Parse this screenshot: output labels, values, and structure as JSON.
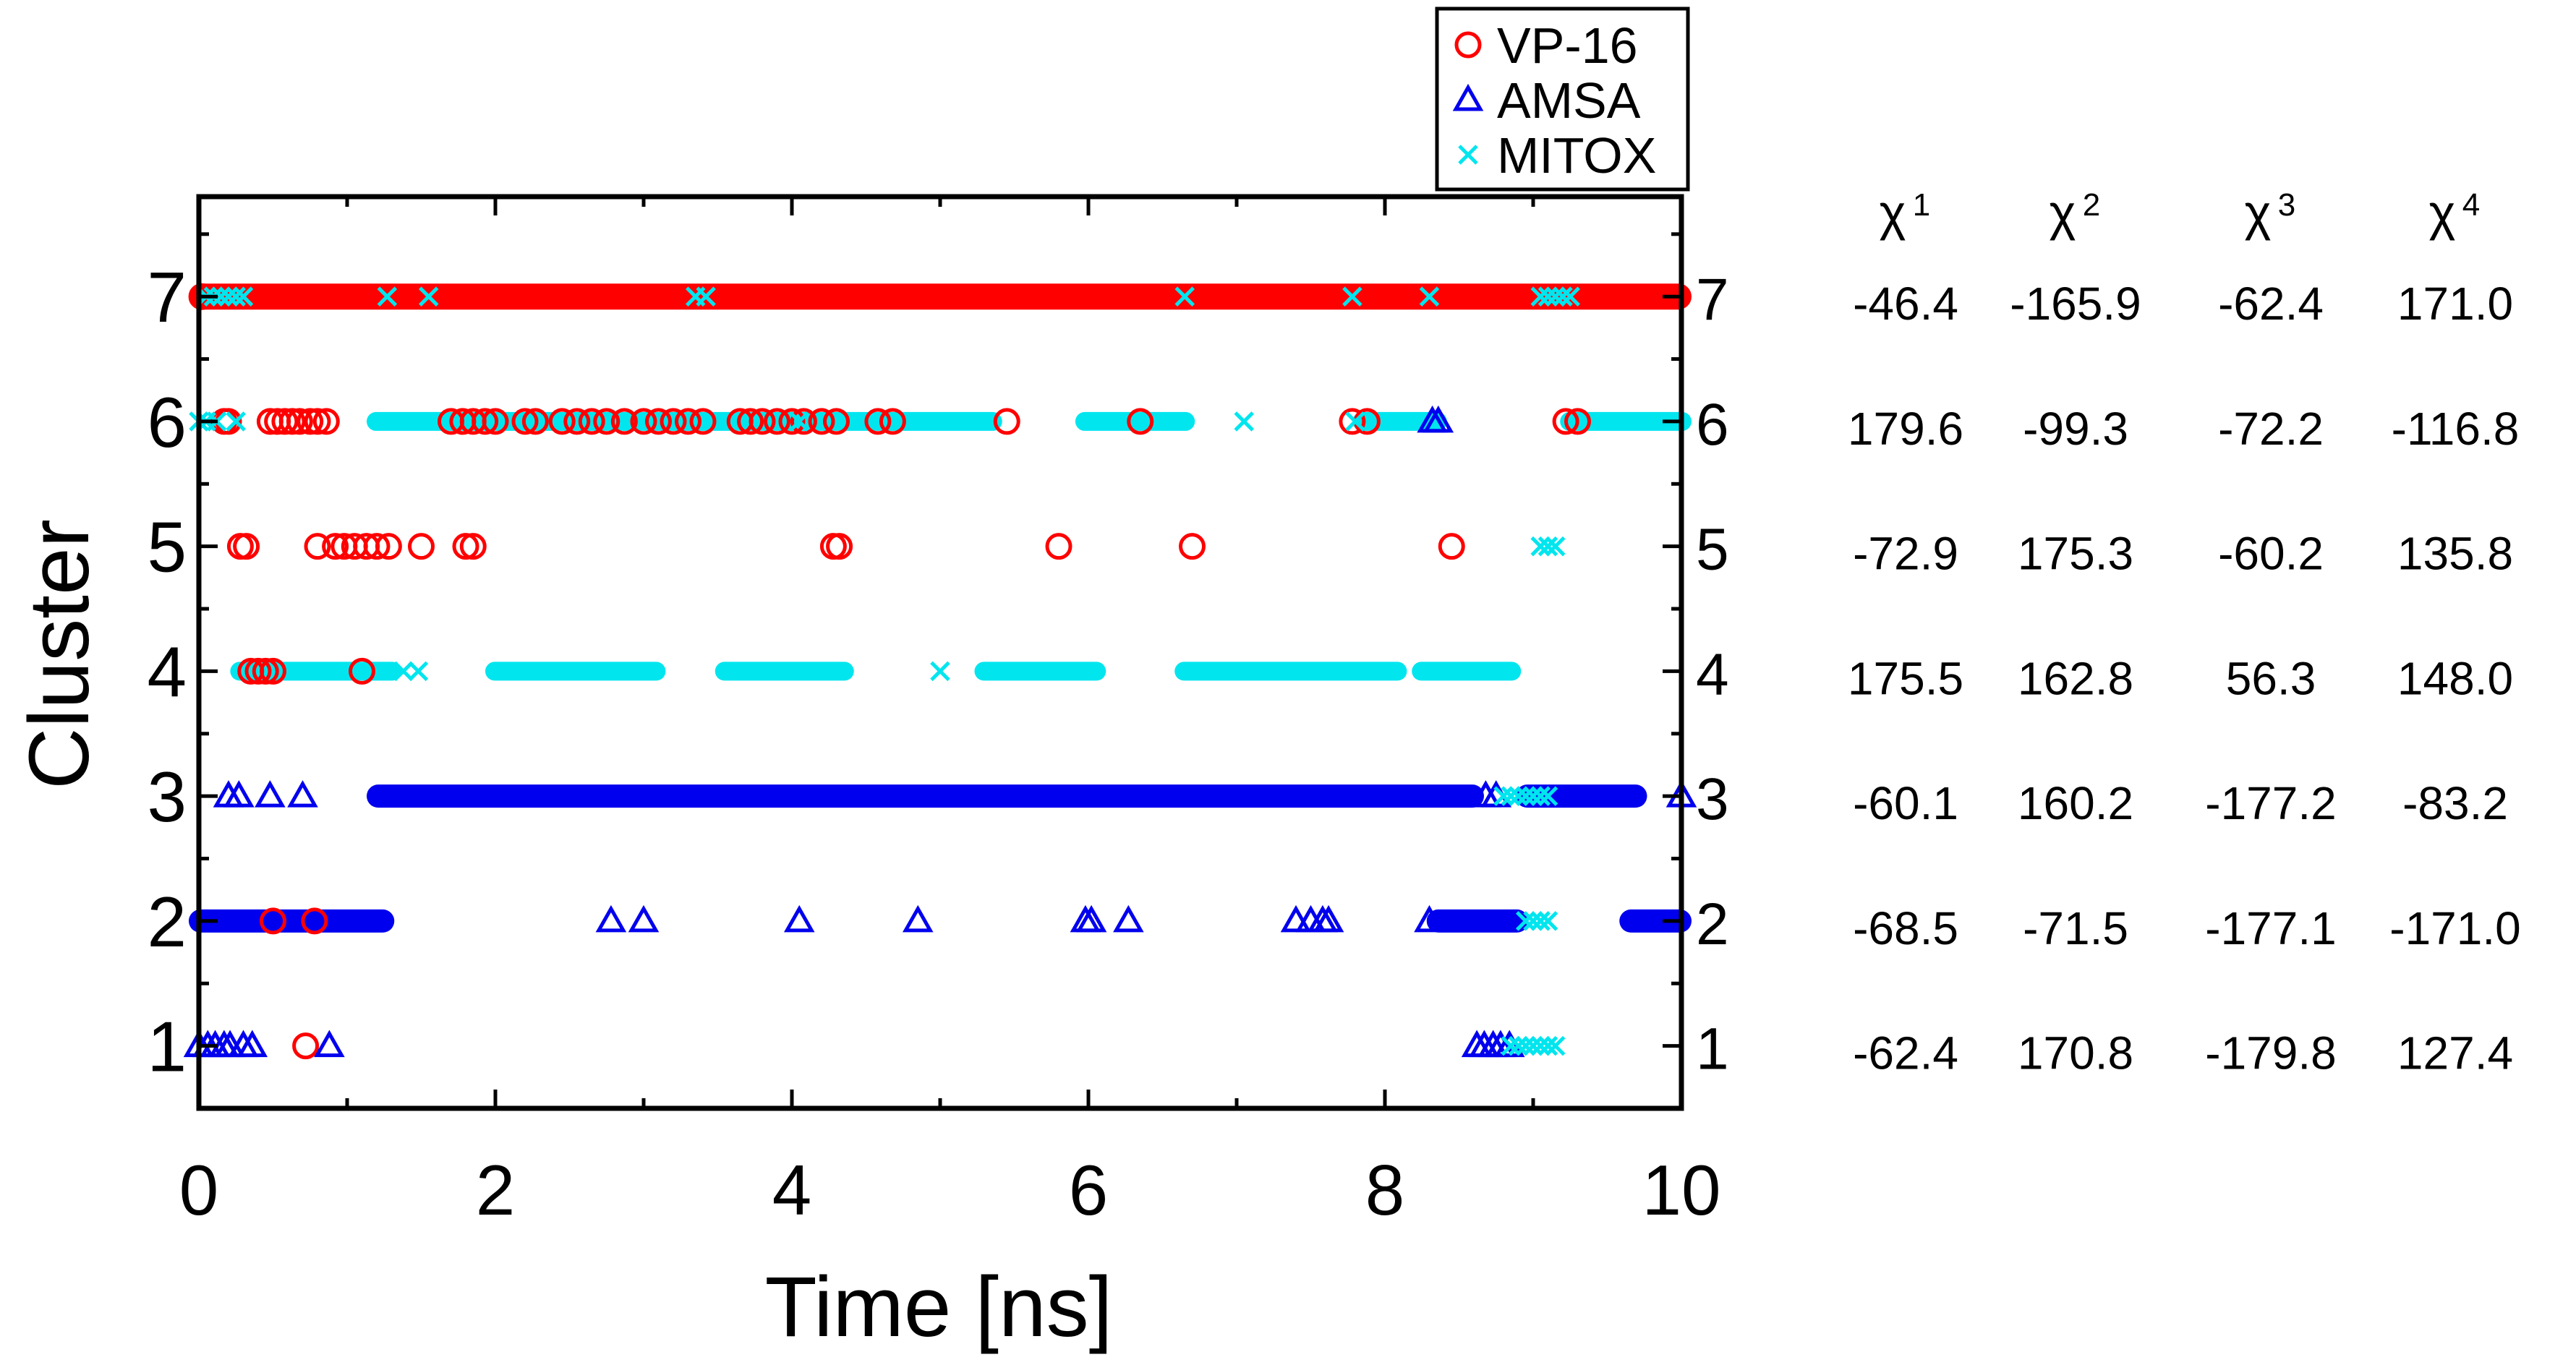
{
  "chart_data": {
    "type": "scatter",
    "title": "",
    "xlabel": "Time [ns]",
    "ylabel": "Cluster",
    "xlim": [
      0,
      10
    ],
    "ylim": [
      0.5,
      7.8
    ],
    "xticks": [
      "0",
      "2",
      "4",
      "6",
      "8",
      "10"
    ],
    "yticks": [
      "1",
      "2",
      "3",
      "4",
      "5",
      "6",
      "7"
    ],
    "grid": false,
    "legend_position": "top-right, above plot",
    "series": [
      {
        "name": "VP-16",
        "marker": "circle",
        "color": "#ff0000",
        "bands": [
          {
            "y": 7,
            "from": 0,
            "to": 10
          }
        ],
        "points": [
          {
            "x": 0.02,
            "y": 7
          },
          {
            "x": 0.17,
            "y": 6
          },
          {
            "x": 0.2,
            "y": 6
          },
          {
            "x": 0.48,
            "y": 6
          },
          {
            "x": 0.53,
            "y": 6
          },
          {
            "x": 0.58,
            "y": 6
          },
          {
            "x": 0.63,
            "y": 6
          },
          {
            "x": 0.68,
            "y": 6
          },
          {
            "x": 0.75,
            "y": 6
          },
          {
            "x": 0.8,
            "y": 6
          },
          {
            "x": 0.86,
            "y": 6
          },
          {
            "x": 1.7,
            "y": 6
          },
          {
            "x": 1.78,
            "y": 6
          },
          {
            "x": 1.85,
            "y": 6
          },
          {
            "x": 1.93,
            "y": 6
          },
          {
            "x": 2.0,
            "y": 6
          },
          {
            "x": 2.2,
            "y": 6
          },
          {
            "x": 2.27,
            "y": 6
          },
          {
            "x": 2.45,
            "y": 6
          },
          {
            "x": 2.55,
            "y": 6
          },
          {
            "x": 2.65,
            "y": 6
          },
          {
            "x": 2.75,
            "y": 6
          },
          {
            "x": 2.87,
            "y": 6
          },
          {
            "x": 3.0,
            "y": 6
          },
          {
            "x": 3.1,
            "y": 6
          },
          {
            "x": 3.2,
            "y": 6
          },
          {
            "x": 3.3,
            "y": 6
          },
          {
            "x": 3.4,
            "y": 6
          },
          {
            "x": 3.65,
            "y": 6
          },
          {
            "x": 3.72,
            "y": 6
          },
          {
            "x": 3.8,
            "y": 6
          },
          {
            "x": 3.9,
            "y": 6
          },
          {
            "x": 4.0,
            "y": 6
          },
          {
            "x": 4.08,
            "y": 6
          },
          {
            "x": 4.2,
            "y": 6
          },
          {
            "x": 4.3,
            "y": 6
          },
          {
            "x": 4.58,
            "y": 6
          },
          {
            "x": 4.68,
            "y": 6
          },
          {
            "x": 5.45,
            "y": 6
          },
          {
            "x": 6.35,
            "y": 6
          },
          {
            "x": 7.78,
            "y": 6
          },
          {
            "x": 7.88,
            "y": 6
          },
          {
            "x": 9.22,
            "y": 6
          },
          {
            "x": 9.3,
            "y": 6
          },
          {
            "x": 0.28,
            "y": 5
          },
          {
            "x": 0.32,
            "y": 5
          },
          {
            "x": 0.8,
            "y": 5
          },
          {
            "x": 0.92,
            "y": 5
          },
          {
            "x": 0.98,
            "y": 5
          },
          {
            "x": 1.05,
            "y": 5
          },
          {
            "x": 1.13,
            "y": 5
          },
          {
            "x": 1.2,
            "y": 5
          },
          {
            "x": 1.28,
            "y": 5
          },
          {
            "x": 1.5,
            "y": 5
          },
          {
            "x": 1.8,
            "y": 5
          },
          {
            "x": 1.85,
            "y": 5
          },
          {
            "x": 4.28,
            "y": 5
          },
          {
            "x": 4.32,
            "y": 5
          },
          {
            "x": 5.8,
            "y": 5
          },
          {
            "x": 6.7,
            "y": 5
          },
          {
            "x": 8.45,
            "y": 5
          },
          {
            "x": 0.35,
            "y": 4
          },
          {
            "x": 0.4,
            "y": 4
          },
          {
            "x": 0.45,
            "y": 4
          },
          {
            "x": 0.5,
            "y": 4
          },
          {
            "x": 1.1,
            "y": 4
          },
          {
            "x": 0.5,
            "y": 2
          },
          {
            "x": 0.78,
            "y": 2
          },
          {
            "x": 0.72,
            "y": 1
          }
        ]
      },
      {
        "name": "AMSA",
        "marker": "triangle",
        "color": "#0000ee",
        "bands": [
          {
            "y": 3,
            "from": 1.2,
            "to": 8.6
          },
          {
            "y": 3,
            "from": 8.95,
            "to": 9.7
          },
          {
            "y": 2,
            "from": 0.0,
            "to": 1.25
          },
          {
            "y": 2,
            "from": 8.35,
            "to": 8.9
          },
          {
            "y": 2,
            "from": 9.65,
            "to": 10.0
          }
        ],
        "points": [
          {
            "x": 8.32,
            "y": 6
          },
          {
            "x": 8.36,
            "y": 6
          },
          {
            "x": 0.2,
            "y": 3
          },
          {
            "x": 0.27,
            "y": 3
          },
          {
            "x": 0.48,
            "y": 3
          },
          {
            "x": 0.7,
            "y": 3
          },
          {
            "x": 8.68,
            "y": 3
          },
          {
            "x": 8.75,
            "y": 3
          },
          {
            "x": 10.0,
            "y": 3
          },
          {
            "x": 2.78,
            "y": 2
          },
          {
            "x": 3.0,
            "y": 2
          },
          {
            "x": 4.05,
            "y": 2
          },
          {
            "x": 4.85,
            "y": 2
          },
          {
            "x": 5.98,
            "y": 2
          },
          {
            "x": 6.02,
            "y": 2
          },
          {
            "x": 6.27,
            "y": 2
          },
          {
            "x": 7.4,
            "y": 2
          },
          {
            "x": 7.5,
            "y": 2
          },
          {
            "x": 7.58,
            "y": 2
          },
          {
            "x": 7.62,
            "y": 2
          },
          {
            "x": 8.3,
            "y": 2
          },
          {
            "x": 0.0,
            "y": 1
          },
          {
            "x": 0.06,
            "y": 1
          },
          {
            "x": 0.11,
            "y": 1
          },
          {
            "x": 0.17,
            "y": 1
          },
          {
            "x": 0.21,
            "y": 1
          },
          {
            "x": 0.3,
            "y": 1
          },
          {
            "x": 0.36,
            "y": 1
          },
          {
            "x": 0.88,
            "y": 1
          },
          {
            "x": 8.62,
            "y": 1
          },
          {
            "x": 8.67,
            "y": 1
          },
          {
            "x": 8.73,
            "y": 1
          },
          {
            "x": 8.78,
            "y": 1
          },
          {
            "x": 8.84,
            "y": 1
          }
        ]
      },
      {
        "name": "MITOX",
        "marker": "x",
        "color": "#00e5ee",
        "bands": [
          {
            "y": 6,
            "from": 1.2,
            "to": 5.35
          },
          {
            "y": 6,
            "from": 5.98,
            "to": 6.65
          },
          {
            "y": 6,
            "from": 7.85,
            "to": 8.35
          },
          {
            "y": 6,
            "from": 9.25,
            "to": 10.0
          },
          {
            "y": 4,
            "from": 0.28,
            "to": 1.3
          },
          {
            "y": 4,
            "from": 2.0,
            "to": 3.08
          },
          {
            "y": 4,
            "from": 3.55,
            "to": 4.35
          },
          {
            "y": 4,
            "from": 5.3,
            "to": 6.05
          },
          {
            "y": 4,
            "from": 6.65,
            "to": 8.08
          },
          {
            "y": 4,
            "from": 8.25,
            "to": 8.85
          }
        ],
        "points": [
          {
            "x": 0.05,
            "y": 7
          },
          {
            "x": 0.1,
            "y": 7
          },
          {
            "x": 0.15,
            "y": 7
          },
          {
            "x": 0.2,
            "y": 7
          },
          {
            "x": 0.25,
            "y": 7
          },
          {
            "x": 0.3,
            "y": 7
          },
          {
            "x": 1.27,
            "y": 7
          },
          {
            "x": 1.55,
            "y": 7
          },
          {
            "x": 3.35,
            "y": 7
          },
          {
            "x": 3.42,
            "y": 7
          },
          {
            "x": 6.65,
            "y": 7
          },
          {
            "x": 7.78,
            "y": 7
          },
          {
            "x": 8.3,
            "y": 7
          },
          {
            "x": 9.05,
            "y": 7
          },
          {
            "x": 9.1,
            "y": 7
          },
          {
            "x": 9.15,
            "y": 7
          },
          {
            "x": 9.2,
            "y": 7
          },
          {
            "x": 9.25,
            "y": 7
          },
          {
            "x": 0.0,
            "y": 6
          },
          {
            "x": 0.05,
            "y": 6
          },
          {
            "x": 0.12,
            "y": 6
          },
          {
            "x": 0.25,
            "y": 6
          },
          {
            "x": 4.05,
            "y": 6
          },
          {
            "x": 7.05,
            "y": 6
          },
          {
            "x": 7.8,
            "y": 6
          },
          {
            "x": 9.05,
            "y": 5
          },
          {
            "x": 9.1,
            "y": 5
          },
          {
            "x": 9.15,
            "y": 5
          },
          {
            "x": 1.38,
            "y": 4
          },
          {
            "x": 1.48,
            "y": 4
          },
          {
            "x": 5.0,
            "y": 4
          },
          {
            "x": 8.8,
            "y": 3
          },
          {
            "x": 8.85,
            "y": 3
          },
          {
            "x": 8.9,
            "y": 3
          },
          {
            "x": 8.95,
            "y": 3
          },
          {
            "x": 9.0,
            "y": 3
          },
          {
            "x": 9.05,
            "y": 3
          },
          {
            "x": 9.1,
            "y": 3
          },
          {
            "x": 8.95,
            "y": 2
          },
          {
            "x": 9.0,
            "y": 2
          },
          {
            "x": 9.05,
            "y": 2
          },
          {
            "x": 9.1,
            "y": 2
          },
          {
            "x": 8.85,
            "y": 1
          },
          {
            "x": 8.9,
            "y": 1
          },
          {
            "x": 8.95,
            "y": 1
          },
          {
            "x": 9.0,
            "y": 1
          },
          {
            "x": 9.05,
            "y": 1
          },
          {
            "x": 9.1,
            "y": 1
          },
          {
            "x": 9.15,
            "y": 1
          }
        ]
      }
    ],
    "right_yticks": [
      "7",
      "6",
      "5",
      "4",
      "3",
      "2",
      "1"
    ]
  },
  "dihedral_table": {
    "headers": [
      {
        "symbol": "χ",
        "sup": "1"
      },
      {
        "symbol": "χ",
        "sup": "2"
      },
      {
        "symbol": "χ",
        "sup": "3"
      },
      {
        "symbol": "χ",
        "sup": "4"
      }
    ],
    "rows": [
      {
        "cluster": "7",
        "values": [
          "-46.4",
          "-165.9",
          "-62.4",
          "171.0"
        ]
      },
      {
        "cluster": "6",
        "values": [
          "179.6",
          "-99.3",
          "-72.2",
          "-116.8"
        ]
      },
      {
        "cluster": "5",
        "values": [
          "-72.9",
          "175.3",
          "-60.2",
          "135.8"
        ]
      },
      {
        "cluster": "4",
        "values": [
          "175.5",
          "162.8",
          "56.3",
          "148.0"
        ]
      },
      {
        "cluster": "3",
        "values": [
          "-60.1",
          "160.2",
          "-177.2",
          "-83.2"
        ]
      },
      {
        "cluster": "2",
        "values": [
          "-68.5",
          "-71.5",
          "-177.1",
          "-171.0"
        ]
      },
      {
        "cluster": "1",
        "values": [
          "-62.4",
          "170.8",
          "-179.8",
          "127.4"
        ]
      }
    ]
  }
}
